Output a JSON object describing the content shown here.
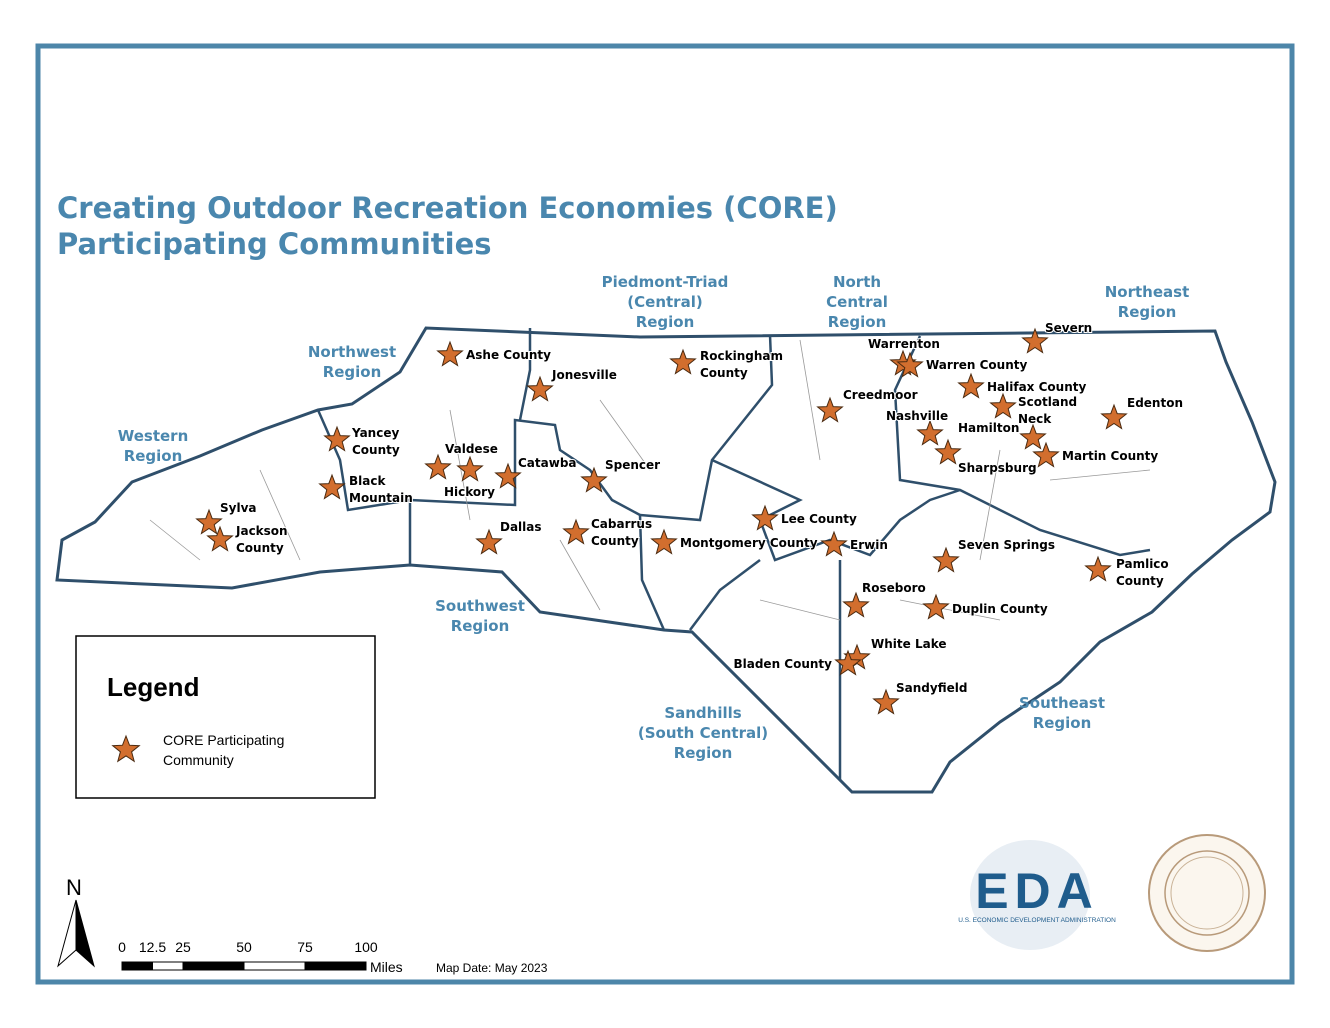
{
  "title": [
    "Creating Outdoor Recreation Economies (CORE)",
    "Participating Communities"
  ],
  "regions": [
    {
      "label": [
        "Western",
        "Region"
      ]
    },
    {
      "label": [
        "Northwest",
        "Region"
      ]
    },
    {
      "label": [
        "Southwest",
        "Region"
      ]
    },
    {
      "label": [
        "Piedmont-Triad",
        "(Central)",
        "Region"
      ]
    },
    {
      "label": [
        "North",
        "Central",
        "Region"
      ]
    },
    {
      "label": [
        "Northeast",
        "Region"
      ]
    },
    {
      "label": [
        "Sandhills",
        "(South Central)",
        "Region"
      ]
    },
    {
      "label": [
        "Southeast",
        "Region"
      ]
    }
  ],
  "communities": [
    {
      "label": [
        "Ashe County"
      ]
    },
    {
      "label": [
        "Jonesville"
      ]
    },
    {
      "label": [
        "Rockingham",
        "County"
      ]
    },
    {
      "label": [
        "Yancey",
        "County"
      ]
    },
    {
      "label": [
        "Valdese"
      ]
    },
    {
      "label": [
        "Hickory"
      ]
    },
    {
      "label": [
        "Catawba"
      ]
    },
    {
      "label": [
        "Black",
        "Mountain"
      ]
    },
    {
      "label": [
        "Spencer"
      ]
    },
    {
      "label": [
        "Sylva"
      ]
    },
    {
      "label": [
        "Jackson",
        "County"
      ]
    },
    {
      "label": [
        "Dallas"
      ]
    },
    {
      "label": [
        "Cabarrus",
        "County"
      ]
    },
    {
      "label": [
        "Montgomery County"
      ]
    },
    {
      "label": [
        "Lee County"
      ]
    },
    {
      "label": [
        "Erwin"
      ]
    },
    {
      "label": [
        "Creedmoor"
      ]
    },
    {
      "label": [
        "Warrenton"
      ]
    },
    {
      "label": [
        "Warren County"
      ]
    },
    {
      "label": [
        "Halifax County"
      ]
    },
    {
      "label": [
        "Nashville"
      ]
    },
    {
      "label": [
        "Hamilton"
      ]
    },
    {
      "label": [
        "Scotland",
        "Neck"
      ]
    },
    {
      "label": [
        "Sharpsburg"
      ]
    },
    {
      "label": [
        "Martin County"
      ]
    },
    {
      "label": [
        "Severn"
      ]
    },
    {
      "label": [
        "Edenton"
      ]
    },
    {
      "label": [
        "Seven Springs"
      ]
    },
    {
      "label": [
        "Pamlico",
        "County"
      ]
    },
    {
      "label": [
        "Roseboro"
      ]
    },
    {
      "label": [
        "Duplin County"
      ]
    },
    {
      "label": [
        "White Lake"
      ]
    },
    {
      "label": [
        "Bladen County"
      ]
    },
    {
      "label": [
        "Sandyfield"
      ]
    }
  ],
  "legend": {
    "title": "Legend",
    "item": [
      "CORE Participating",
      "Community"
    ]
  },
  "north": "N",
  "scale": {
    "ticks": [
      0,
      12.5,
      25,
      50,
      75,
      100
    ],
    "unit": "Miles"
  },
  "map_date": "Map Date: May 2023",
  "logo": {
    "name": "EDA",
    "subtitle": "U.S. ECONOMIC DEVELOPMENT ADMINISTRATION"
  }
}
